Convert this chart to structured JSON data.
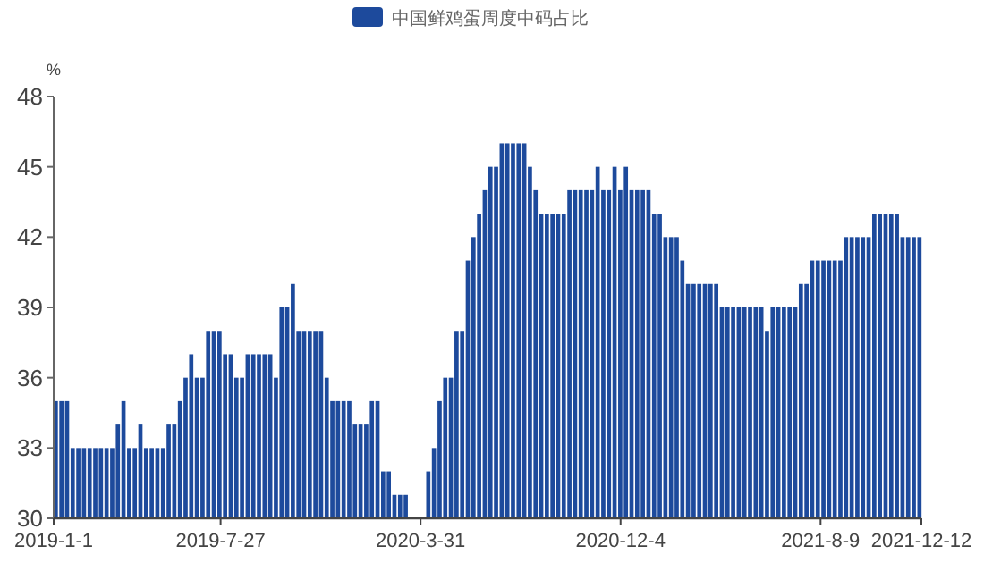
{
  "chart_data": {
    "type": "bar",
    "legend": "top",
    "ylabel": "%",
    "ylim": [
      30,
      48
    ],
    "yticks": [
      30,
      33,
      36,
      39,
      42,
      45,
      48
    ],
    "xlim": [
      "2019-01-01",
      "2021-12-12"
    ],
    "xticks": [
      {
        "value": "2019-01-01",
        "label": "2019-1-1"
      },
      {
        "value": "2019-07-27",
        "label": "2019-7-27"
      },
      {
        "value": "2020-03-31",
        "label": "2020-3-31"
      },
      {
        "value": "2020-12-04",
        "label": "2020-12-4"
      },
      {
        "value": "2021-08-09",
        "label": "2021-8-9"
      },
      {
        "value": "2021-12-12",
        "label": "2021-12-12"
      }
    ],
    "x": [
      "2019-01-01",
      "2019-01-08",
      "2019-01-15",
      "2019-01-22",
      "2019-01-29",
      "2019-02-05",
      "2019-02-12",
      "2019-02-19",
      "2019-02-26",
      "2019-03-05",
      "2019-03-12",
      "2019-03-19",
      "2019-03-26",
      "2019-04-02",
      "2019-04-09",
      "2019-04-16",
      "2019-04-23",
      "2019-04-30",
      "2019-05-07",
      "2019-05-14",
      "2019-05-21",
      "2019-05-28",
      "2019-06-04",
      "2019-06-11",
      "2019-06-18",
      "2019-06-25",
      "2019-07-02",
      "2019-07-09",
      "2019-07-16",
      "2019-07-23",
      "2019-07-30",
      "2019-08-06",
      "2019-08-13",
      "2019-08-20",
      "2019-08-27",
      "2019-09-03",
      "2019-09-10",
      "2019-09-17",
      "2019-09-24",
      "2019-10-01",
      "2019-10-08",
      "2019-10-15",
      "2019-10-22",
      "2019-10-29",
      "2019-11-05",
      "2019-11-12",
      "2019-11-19",
      "2019-11-26",
      "2019-12-03",
      "2019-12-10",
      "2019-12-17",
      "2019-12-24",
      "2019-12-31",
      "2020-01-07",
      "2020-01-14",
      "2020-01-21",
      "2020-01-28",
      "2020-02-04",
      "2020-02-11",
      "2020-02-18",
      "2020-02-25",
      "2020-03-03",
      "2020-03-10",
      "2020-03-17",
      "2020-03-24",
      "2020-03-31",
      "2020-04-07",
      "2020-04-14",
      "2020-04-21",
      "2020-04-28",
      "2020-05-05",
      "2020-05-12",
      "2020-05-19",
      "2020-05-26",
      "2020-06-02",
      "2020-06-09",
      "2020-06-16",
      "2020-06-23",
      "2020-06-30",
      "2020-07-07",
      "2020-07-14",
      "2020-07-21",
      "2020-07-28",
      "2020-08-04",
      "2020-08-11",
      "2020-08-18",
      "2020-08-25",
      "2020-09-01",
      "2020-09-08",
      "2020-09-15",
      "2020-09-22",
      "2020-09-29",
      "2020-10-06",
      "2020-10-13",
      "2020-10-20",
      "2020-10-27",
      "2020-11-03",
      "2020-11-10",
      "2020-11-17",
      "2020-11-24",
      "2020-12-01",
      "2020-12-08",
      "2020-12-15",
      "2020-12-22",
      "2020-12-29",
      "2021-01-05",
      "2021-01-12",
      "2021-01-19",
      "2021-01-26",
      "2021-02-02",
      "2021-02-09",
      "2021-02-16",
      "2021-02-23",
      "2021-03-02",
      "2021-03-09",
      "2021-03-16",
      "2021-03-23",
      "2021-03-30",
      "2021-04-06",
      "2021-04-13",
      "2021-04-20",
      "2021-04-27",
      "2021-05-04",
      "2021-05-11",
      "2021-05-18",
      "2021-05-25",
      "2021-06-01",
      "2021-06-08",
      "2021-06-15",
      "2021-06-22",
      "2021-06-29",
      "2021-07-06",
      "2021-07-13",
      "2021-07-20",
      "2021-07-27",
      "2021-08-03",
      "2021-08-10",
      "2021-08-17",
      "2021-08-24",
      "2021-08-31",
      "2021-09-07",
      "2021-09-14",
      "2021-09-21",
      "2021-09-28",
      "2021-10-05",
      "2021-10-12",
      "2021-10-19",
      "2021-10-26",
      "2021-11-02",
      "2021-11-09",
      "2021-11-16",
      "2021-11-23",
      "2021-11-30",
      "2021-12-07"
    ],
    "series": [
      {
        "name": "中国鲜鸡蛋周度中码占比",
        "color": "#1d4a9c",
        "values": [
          35,
          35,
          35,
          33,
          33,
          33,
          33,
          33,
          33,
          33,
          33,
          34,
          35,
          33,
          33,
          34,
          33,
          33,
          33,
          33,
          34,
          34,
          35,
          36,
          37,
          36,
          36,
          38,
          38,
          38,
          37,
          37,
          36,
          36,
          37,
          37,
          37,
          37,
          37,
          36,
          39,
          39,
          40,
          38,
          38,
          38,
          38,
          38,
          36,
          35,
          35,
          35,
          35,
          34,
          34,
          34,
          35,
          35,
          32,
          32,
          31,
          31,
          31,
          null,
          null,
          null,
          32,
          33,
          35,
          36,
          36,
          38,
          38,
          41,
          42,
          43,
          44,
          45,
          45,
          46,
          46,
          46,
          46,
          46,
          45,
          44,
          43,
          43,
          43,
          43,
          43,
          44,
          44,
          44,
          44,
          44,
          45,
          44,
          44,
          45,
          44,
          45,
          44,
          44,
          44,
          44,
          43,
          43,
          42,
          42,
          42,
          41,
          40,
          40,
          40,
          40,
          40,
          40,
          39,
          39,
          39,
          39,
          39,
          39,
          39,
          39,
          38,
          39,
          39,
          39,
          39,
          39,
          40,
          40,
          41,
          41,
          41,
          41,
          41,
          41,
          42,
          42,
          42,
          42,
          42,
          43,
          43,
          43,
          43,
          43,
          42,
          42,
          42,
          42
        ]
      }
    ]
  }
}
